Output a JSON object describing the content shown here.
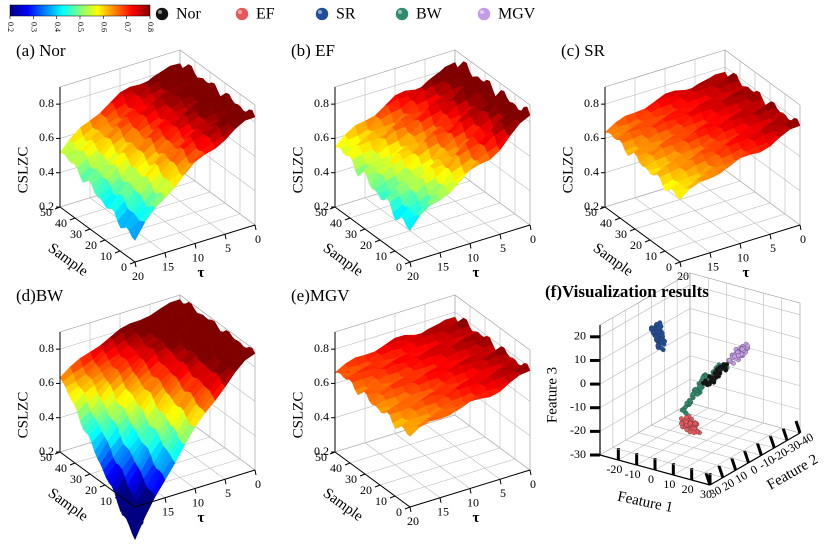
{
  "colorbar": {
    "clim": [
      0.2,
      0.8
    ],
    "ticks": [
      0.2,
      0.3,
      0.4,
      0.5,
      0.6,
      0.7,
      0.8
    ]
  },
  "legend": [
    {
      "name": "Nor",
      "color": "#111111"
    },
    {
      "name": "EF",
      "color": "#e8575a"
    },
    {
      "name": "SR",
      "color": "#1f4e9c"
    },
    {
      "name": "BW",
      "color": "#2e8b6e"
    },
    {
      "name": "MGV",
      "color": "#c49be8"
    }
  ],
  "chart_data": [
    {
      "type": "surface",
      "title": "(a) Nor",
      "zlabel": "CSLZC",
      "xlabel": "Sample",
      "ylabel": "τ",
      "zlim": [
        0.2,
        0.9
      ],
      "zticks": [
        0.2,
        0.4,
        0.6,
        0.8
      ],
      "xlim": [
        0,
        50
      ],
      "xticks": [
        0,
        10,
        20,
        30,
        40,
        50
      ],
      "ylim": [
        0,
        20
      ],
      "yticks": [
        0,
        5,
        10,
        15,
        20
      ]
    },
    {
      "type": "surface",
      "title": "(b) EF",
      "zlabel": "CSLZC",
      "xlabel": "Sample",
      "ylabel": "τ",
      "zlim": [
        0.2,
        0.9
      ],
      "zticks": [
        0.2,
        0.4,
        0.6,
        0.8
      ],
      "xlim": [
        0,
        50
      ],
      "xticks": [
        0,
        10,
        20,
        30,
        40,
        50
      ],
      "ylim": [
        0,
        20
      ],
      "yticks": [
        0,
        5,
        10,
        15,
        20
      ]
    },
    {
      "type": "surface",
      "title": "(c) SR",
      "zlabel": "CSLZC",
      "xlabel": "Sample",
      "ylabel": "τ",
      "zlim": [
        0.2,
        0.9
      ],
      "zticks": [
        0.2,
        0.4,
        0.6,
        0.8
      ],
      "xlim": [
        0,
        50
      ],
      "xticks": [
        0,
        10,
        20,
        30,
        40,
        50
      ],
      "ylim": [
        0,
        20
      ],
      "yticks": [
        0,
        5,
        10,
        15,
        20
      ]
    },
    {
      "type": "surface",
      "title": "(d)BW",
      "zlabel": "CSLZC",
      "xlabel": "Sample",
      "ylabel": "τ",
      "zlim": [
        0.2,
        0.9
      ],
      "zticks": [
        0.2,
        0.4,
        0.6,
        0.8
      ],
      "xlim": [
        0,
        50
      ],
      "xticks": [
        0,
        10,
        20,
        30,
        40,
        50
      ],
      "ylim": [
        0,
        20
      ],
      "yticks": [
        0,
        5,
        10,
        15,
        20
      ]
    },
    {
      "type": "surface",
      "title": "(e)MGV",
      "zlabel": "CSLZC",
      "xlabel": "Sample",
      "ylabel": "τ",
      "zlim": [
        0.2,
        0.9
      ],
      "zticks": [
        0.2,
        0.4,
        0.6,
        0.8
      ],
      "xlim": [
        0,
        50
      ],
      "xticks": [
        0,
        10,
        20,
        30,
        40,
        50
      ],
      "ylim": [
        0,
        20
      ],
      "yticks": [
        0,
        5,
        10,
        15,
        20
      ]
    },
    {
      "type": "scatter3d",
      "title": "(f)Visualization results",
      "xlabel": "Feature 1",
      "ylabel": "Feature 2",
      "zlabel": "Feature 3",
      "xlim": [
        -30,
        30
      ],
      "xticks": [
        -20,
        -10,
        0,
        10,
        20,
        30
      ],
      "ylim": [
        -40,
        30
      ],
      "yticks": [
        30,
        20,
        10,
        0,
        -10,
        -20,
        -30,
        -40
      ],
      "zlim": [
        -30,
        25
      ],
      "zticks": [
        -30,
        -20,
        -10,
        0,
        10,
        20
      ]
    }
  ]
}
